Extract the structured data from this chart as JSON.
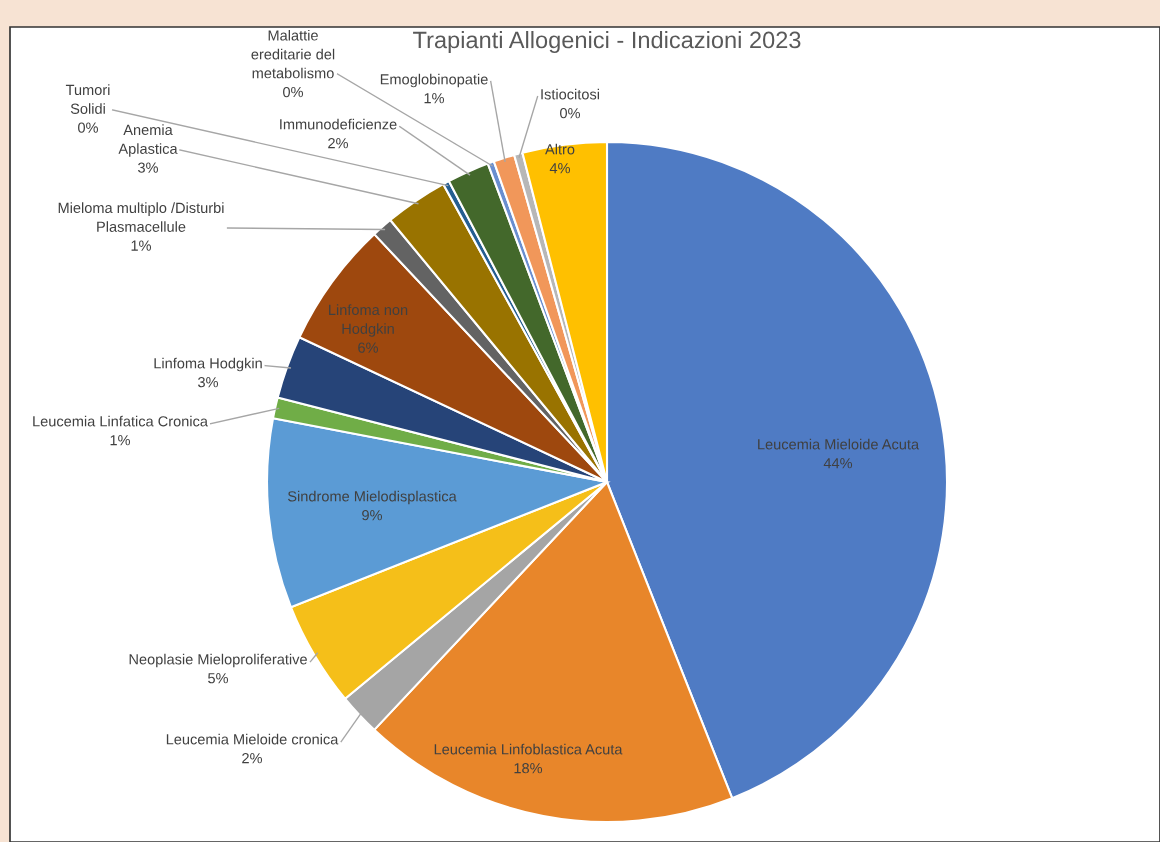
{
  "chart_data": {
    "type": "pie",
    "title": "Trapianti Allogenici - Indicazioni 2023",
    "categories": [
      "Leucemia Mieloide Acuta",
      "Leucemia Linfoblastica Acuta",
      "Leucemia Mieloide cronica",
      "Neoplasie Mieloproliferative",
      "Sindrome Mielodisplastica",
      "Leucemia Linfatica Cronica",
      "Linfoma Hodgkin",
      "Linfoma non Hodgkin",
      "Mieloma multiplo /Disturbi Plasmacellule",
      "Anemia Aplastica",
      "Tumori Solidi",
      "Immunodeficienze",
      "Malattie ereditarie del metabolismo",
      "Emoglobinopatie",
      "Istiocitosi",
      "Altro"
    ],
    "values": [
      44,
      18,
      2,
      5,
      9,
      1,
      3,
      6,
      1,
      3,
      0.3,
      2,
      0.3,
      1,
      0.4,
      4
    ],
    "value_labels": [
      "44%",
      "18%",
      "2%",
      "5%",
      "9%",
      "1%",
      "3%",
      "6%",
      "1%",
      "3%",
      "0%",
      "2%",
      "0%",
      "1%",
      "0%",
      "4%"
    ],
    "colors": [
      "#4f7bc4",
      "#e8862a",
      "#a5a5a5",
      "#f5bf19",
      "#5b9bd5",
      "#70ad47",
      "#264478",
      "#9e480e",
      "#636363",
      "#997300",
      "#255e91",
      "#43682b",
      "#698ed0",
      "#f1975a",
      "#b7b7b7",
      "#ffc000"
    ]
  }
}
